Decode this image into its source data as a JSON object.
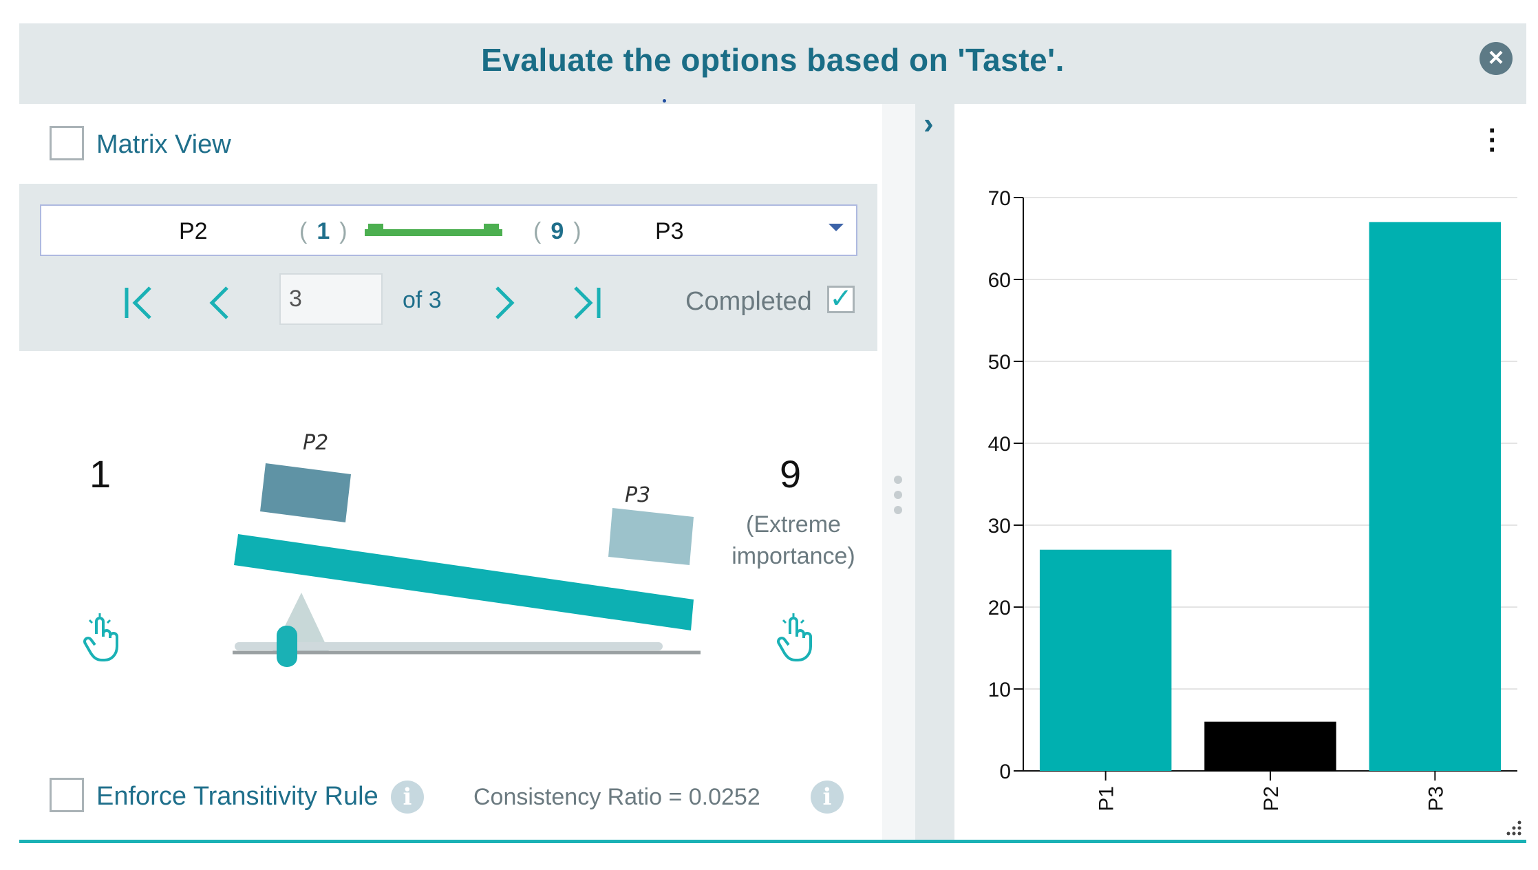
{
  "header": {
    "title": "Evaluate the options based on 'Taste'."
  },
  "left": {
    "matrix_view": {
      "label": "Matrix View",
      "checked": false
    },
    "pair": {
      "left": "P2",
      "left_value": "1",
      "right_value": "9",
      "right": "P3"
    },
    "pagination": {
      "current_page": "3",
      "of_label": "of 3",
      "completed_label": "Completed",
      "completed": true
    },
    "comparison": {
      "left_value": "1",
      "right_value": "9",
      "right_desc_line1": "(Extreme",
      "right_desc_line2": "importance)",
      "left_item": "P2",
      "right_item": "P3",
      "slider_position": 1
    },
    "enforce": {
      "label": "Enforce Transitivity Rule",
      "checked": false
    },
    "consistency": {
      "label": "Consistency Ratio  =  0.0252"
    }
  },
  "colors": {
    "accent": "#1ab1b5",
    "bar": "#00b0b0",
    "selected_bar": "#000000",
    "header_bg": "#e2e8ea",
    "title": "#1a6d86"
  },
  "icons": [
    "close-icon",
    "first-page-icon",
    "prev-page-icon",
    "next-page-icon",
    "last-page-icon",
    "hand-pointer-icon",
    "info-icon",
    "chevron-right-icon",
    "kebab-menu-icon"
  ],
  "chart_data": {
    "type": "bar",
    "categories": [
      "P1",
      "P2",
      "P3"
    ],
    "values": [
      27,
      6,
      67
    ],
    "highlight_index": 1,
    "ylim": [
      0,
      70
    ],
    "yticks": [
      0,
      10,
      20,
      30,
      40,
      50,
      60,
      70
    ],
    "grid": true,
    "title": "",
    "xlabel": "",
    "ylabel": ""
  }
}
